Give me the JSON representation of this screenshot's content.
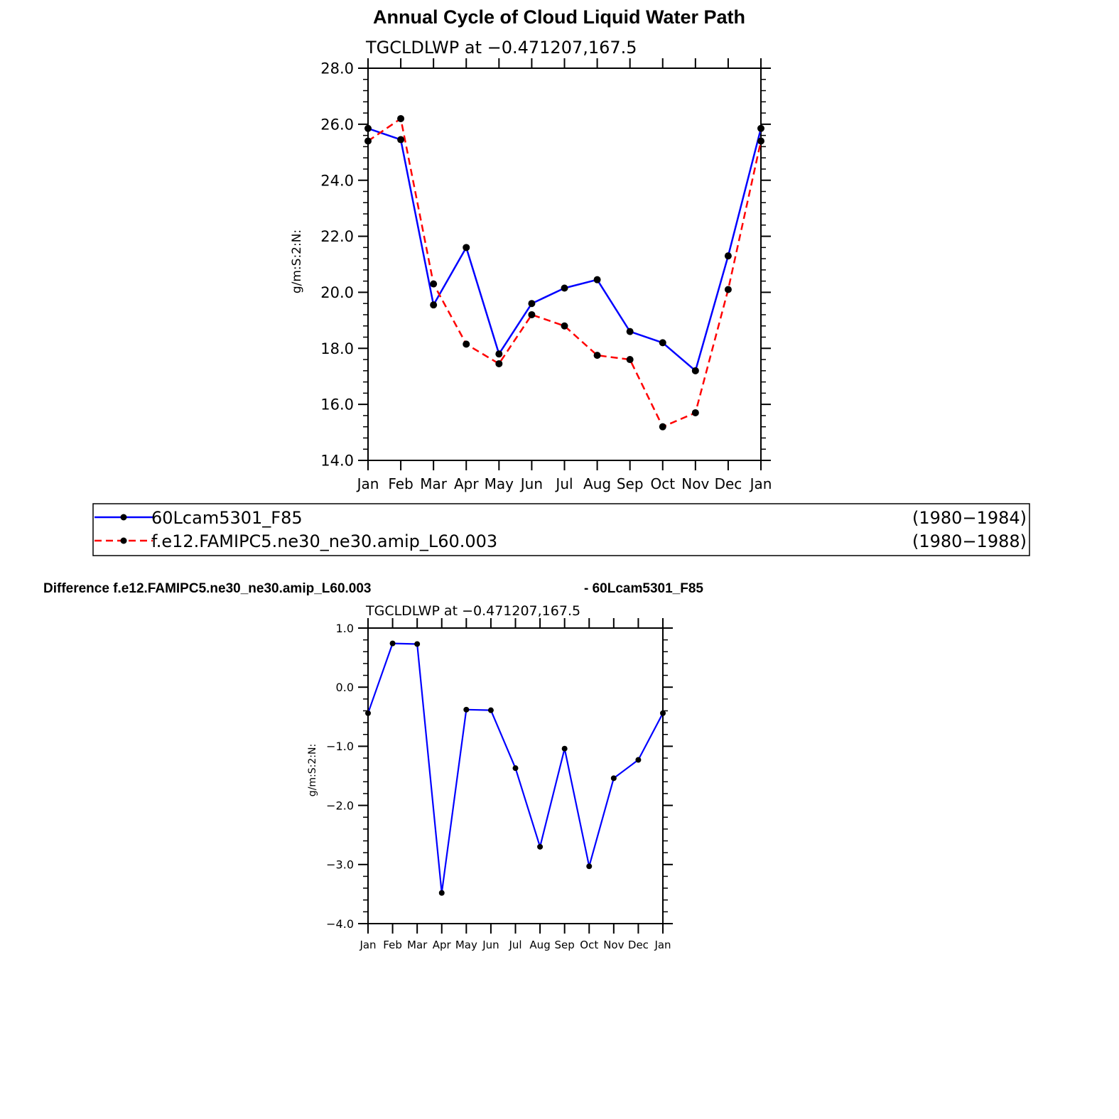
{
  "main_title": "Annual Cycle of Cloud Liquid Water Path",
  "diff_title_left": "Difference f.e12.FAMIPC5.ne30_ne30.amip_L60.003",
  "diff_title_right": "- 60Lcam5301_F85",
  "legend": [
    {
      "name": "60Lcam5301_F85",
      "years": "(1980−1984)"
    },
    {
      "name": "f.e12.FAMIPC5.ne30_ne30.amip_L60.003",
      "years": "(1980−1988)"
    }
  ],
  "chart_data": [
    {
      "type": "line",
      "subtitle": "TGCLDLWP  at  −0.471207,167.5",
      "xlabel": "",
      "ylabel": "g/m:S:2:N:",
      "categories": [
        "Jan",
        "Feb",
        "Mar",
        "Apr",
        "May",
        "Jun",
        "Jul",
        "Aug",
        "Sep",
        "Oct",
        "Nov",
        "Dec",
        "Jan"
      ],
      "ylim": [
        14.0,
        28.0
      ],
      "yticks": [
        "14.0",
        "16.0",
        "18.0",
        "20.0",
        "22.0",
        "24.0",
        "26.0",
        "28.0"
      ],
      "series": [
        {
          "name": "60Lcam5301_F85",
          "color": "#0000ff",
          "dash": "solid",
          "values": [
            25.85,
            25.45,
            19.55,
            21.6,
            17.8,
            19.6,
            20.15,
            20.45,
            18.6,
            18.2,
            17.2,
            21.3,
            25.85
          ]
        },
        {
          "name": "f.e12.FAMIPC5.ne30_ne30.amip_L60.003",
          "color": "#ff0000",
          "dash": "dashed",
          "values": [
            25.4,
            26.2,
            20.3,
            18.15,
            17.45,
            19.2,
            18.8,
            17.75,
            17.6,
            15.2,
            15.7,
            20.1,
            25.4
          ]
        }
      ]
    },
    {
      "type": "line",
      "subtitle": "TGCLDLWP  at  −0.471207,167.5",
      "xlabel": "",
      "ylabel": "g/m:S:2:N:",
      "categories": [
        "Jan",
        "Feb",
        "Mar",
        "Apr",
        "May",
        "Jun",
        "Jul",
        "Aug",
        "Sep",
        "Oct",
        "Nov",
        "Dec",
        "Jan"
      ],
      "ylim": [
        -4.0,
        1.0
      ],
      "yticks": [
        "−4.0",
        "−3.0",
        "−2.0",
        "−1.0",
        "0.0",
        "1.0"
      ],
      "series": [
        {
          "name": "Difference",
          "color": "#0000ff",
          "dash": "solid",
          "values": [
            -0.44,
            0.74,
            0.73,
            -3.48,
            -0.38,
            -0.39,
            -1.37,
            -2.7,
            -1.04,
            -3.03,
            -1.54,
            -1.23,
            -0.44
          ]
        }
      ]
    }
  ]
}
